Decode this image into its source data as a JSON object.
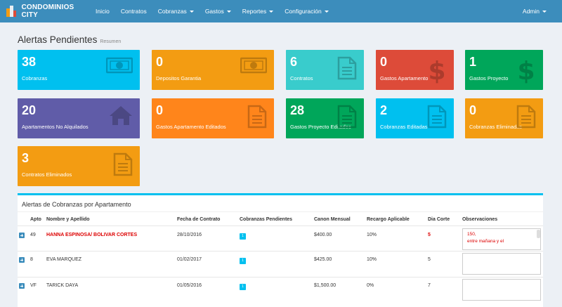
{
  "nav": {
    "brand": "CONDOMINIOS CITY",
    "items": [
      {
        "label": "Inicio",
        "dropdown": false
      },
      {
        "label": "Contratos",
        "dropdown": false
      },
      {
        "label": "Cobranzas",
        "dropdown": true
      },
      {
        "label": "Gastos",
        "dropdown": true
      },
      {
        "label": "Reportes",
        "dropdown": true
      },
      {
        "label": "Configuración",
        "dropdown": true
      }
    ],
    "user": "Admin"
  },
  "header": {
    "title": "Alertas Pendientes",
    "subtitle": "Resumen"
  },
  "boxes": [
    {
      "value": "38",
      "label": "Cobranzas",
      "color": "#00c0ef",
      "icon": "money-icon"
    },
    {
      "value": "0",
      "label": "Depositos Garantia",
      "color": "#f39c12",
      "icon": "money-icon"
    },
    {
      "value": "6",
      "label": "Contratos",
      "color": "#39cccc",
      "icon": "document-icon"
    },
    {
      "value": "0",
      "label": "Gastos Apartamento",
      "color": "#dd4b39",
      "icon": "dollar-icon"
    },
    {
      "value": "1",
      "label": "Gastos Proyecto",
      "color": "#00a65a",
      "icon": "dollar-icon"
    },
    {
      "value": "20",
      "label": "Apartamentos No Alquilados",
      "color": "#605ca8",
      "icon": "home-icon"
    },
    {
      "value": "0",
      "label": "Gastos Apartamento Editados",
      "color": "#ff851b",
      "icon": "document-icon"
    },
    {
      "value": "28",
      "label": "Gastos Proyecto Editados",
      "color": "#00a65a",
      "icon": "document-icon"
    },
    {
      "value": "2",
      "label": "Cobranzas Editadas",
      "color": "#00c0ef",
      "icon": "document-icon"
    },
    {
      "value": "0",
      "label": "Cobranzas Eliminadas",
      "color": "#f39c12",
      "icon": "document-icon"
    },
    {
      "value": "3",
      "label": "Contratos Eliminados",
      "color": "#f39c12",
      "icon": "document-icon"
    }
  ],
  "table": {
    "title": "Alertas de Cobranzas por Apartamento",
    "columns": [
      "Apto",
      "Nombre y Apellido",
      "Fecha de Contrato",
      "Cobranzas Pendientes",
      "Canon Mensual",
      "Recargo Aplicable",
      "Dia Corte",
      "Observaciones"
    ],
    "rows": [
      {
        "apto": "49",
        "nombre": "HANNA ESPINOSA/ BOLIVAR CORTES",
        "fecha": "28/10/2016",
        "pendientes": "1",
        "canon": "$400.00",
        "recargo": "10%",
        "corte": "5",
        "obs": "150,\nentre mañana y el",
        "highlight": true
      },
      {
        "apto": "8",
        "nombre": "EVA MARQUEZ",
        "fecha": "01/02/2017",
        "pendientes": "1",
        "canon": "$425.00",
        "recargo": "10%",
        "corte": "5",
        "obs": "",
        "highlight": false
      },
      {
        "apto": "VF",
        "nombre": "TARICK DAYA",
        "fecha": "01/05/2016",
        "pendientes": "1",
        "canon": "$1,500.00",
        "recargo": "0%",
        "corte": "7",
        "obs": "",
        "highlight": false
      }
    ]
  }
}
